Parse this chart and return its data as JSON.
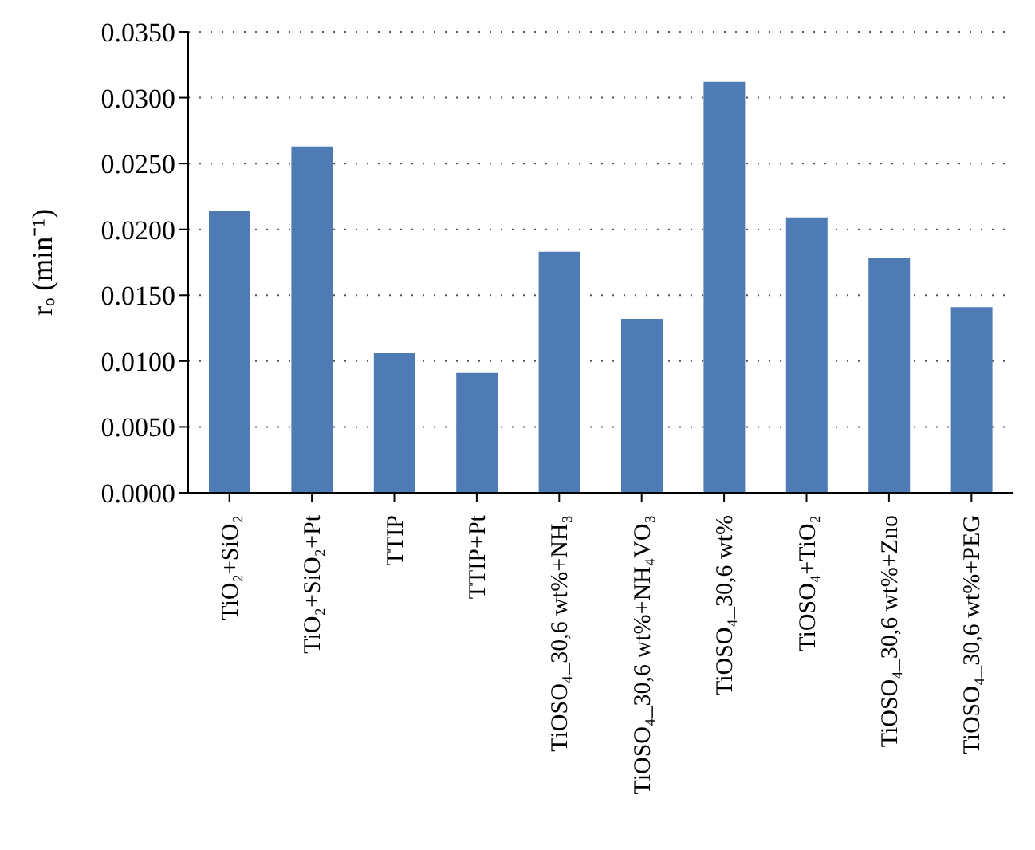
{
  "chart_data": {
    "type": "bar",
    "ylabel": "rₒ (min⁻¹)",
    "categories": [
      "TiO₂+SiO₂",
      "TiO₂+SiO₂+Pt",
      "TTIP",
      "TTIP+Pt",
      "TiOSO₄_30,6 wt%+NH₃",
      "TiOSO₄_30,6 wt%+NH₄VO₃",
      "TiOSO₄_30,6 wt%",
      "TiOSO₄+TiO₂",
      "TiOSO₄_30,6 wt%+Zno",
      "TiOSO₄_30,6 wt%+PEG"
    ],
    "values": [
      0.0214,
      0.0263,
      0.0106,
      0.0091,
      0.0183,
      0.0132,
      0.0312,
      0.0209,
      0.0178,
      0.0141
    ],
    "color": "#4f7bb5",
    "ylim": [
      0,
      0.035
    ],
    "yticks": [
      {
        "value": 0,
        "label": "0.0000"
      },
      {
        "value": 0.005,
        "label": "0.0050"
      },
      {
        "value": 0.01,
        "label": "0.0100"
      },
      {
        "value": 0.015,
        "label": "0.0150"
      },
      {
        "value": 0.02,
        "label": "0.0200"
      },
      {
        "value": 0.025,
        "label": "0.0250"
      },
      {
        "value": 0.03,
        "label": "0.0300"
      },
      {
        "value": 0.035,
        "label": "0.0350"
      }
    ],
    "grid": "y",
    "legend": false
  }
}
